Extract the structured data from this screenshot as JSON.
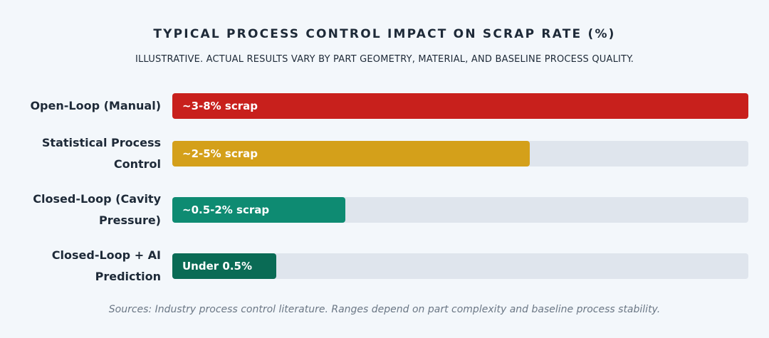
{
  "chart_data": {
    "type": "bar",
    "orientation": "horizontal",
    "title": "Typical Process Control Impact on Scrap Rate (%)",
    "subtitle": "Illustrative. Actual results vary by part geometry, material, and baseline process quality.",
    "source": "Sources: Industry process control literature. Ranges depend on part complexity and baseline process stability.",
    "xlim": [
      0,
      100
    ],
    "grid": false,
    "categories": [
      "Open-Loop (Manual)",
      "Statistical Process Control",
      "Closed-Loop (Cavity Pressure)",
      "Closed-Loop + AI Prediction"
    ],
    "values": [
      100,
      62,
      30,
      18
    ],
    "bar_labels": [
      "~3-8% scrap",
      "~2-5% scrap",
      "~0.5-2% scrap",
      "Under 0.5%"
    ],
    "colors": [
      "#c8201c",
      "#d4a01a",
      "#0e8b72",
      "#0a6b55"
    ],
    "track_color": "#dfe5ed"
  }
}
